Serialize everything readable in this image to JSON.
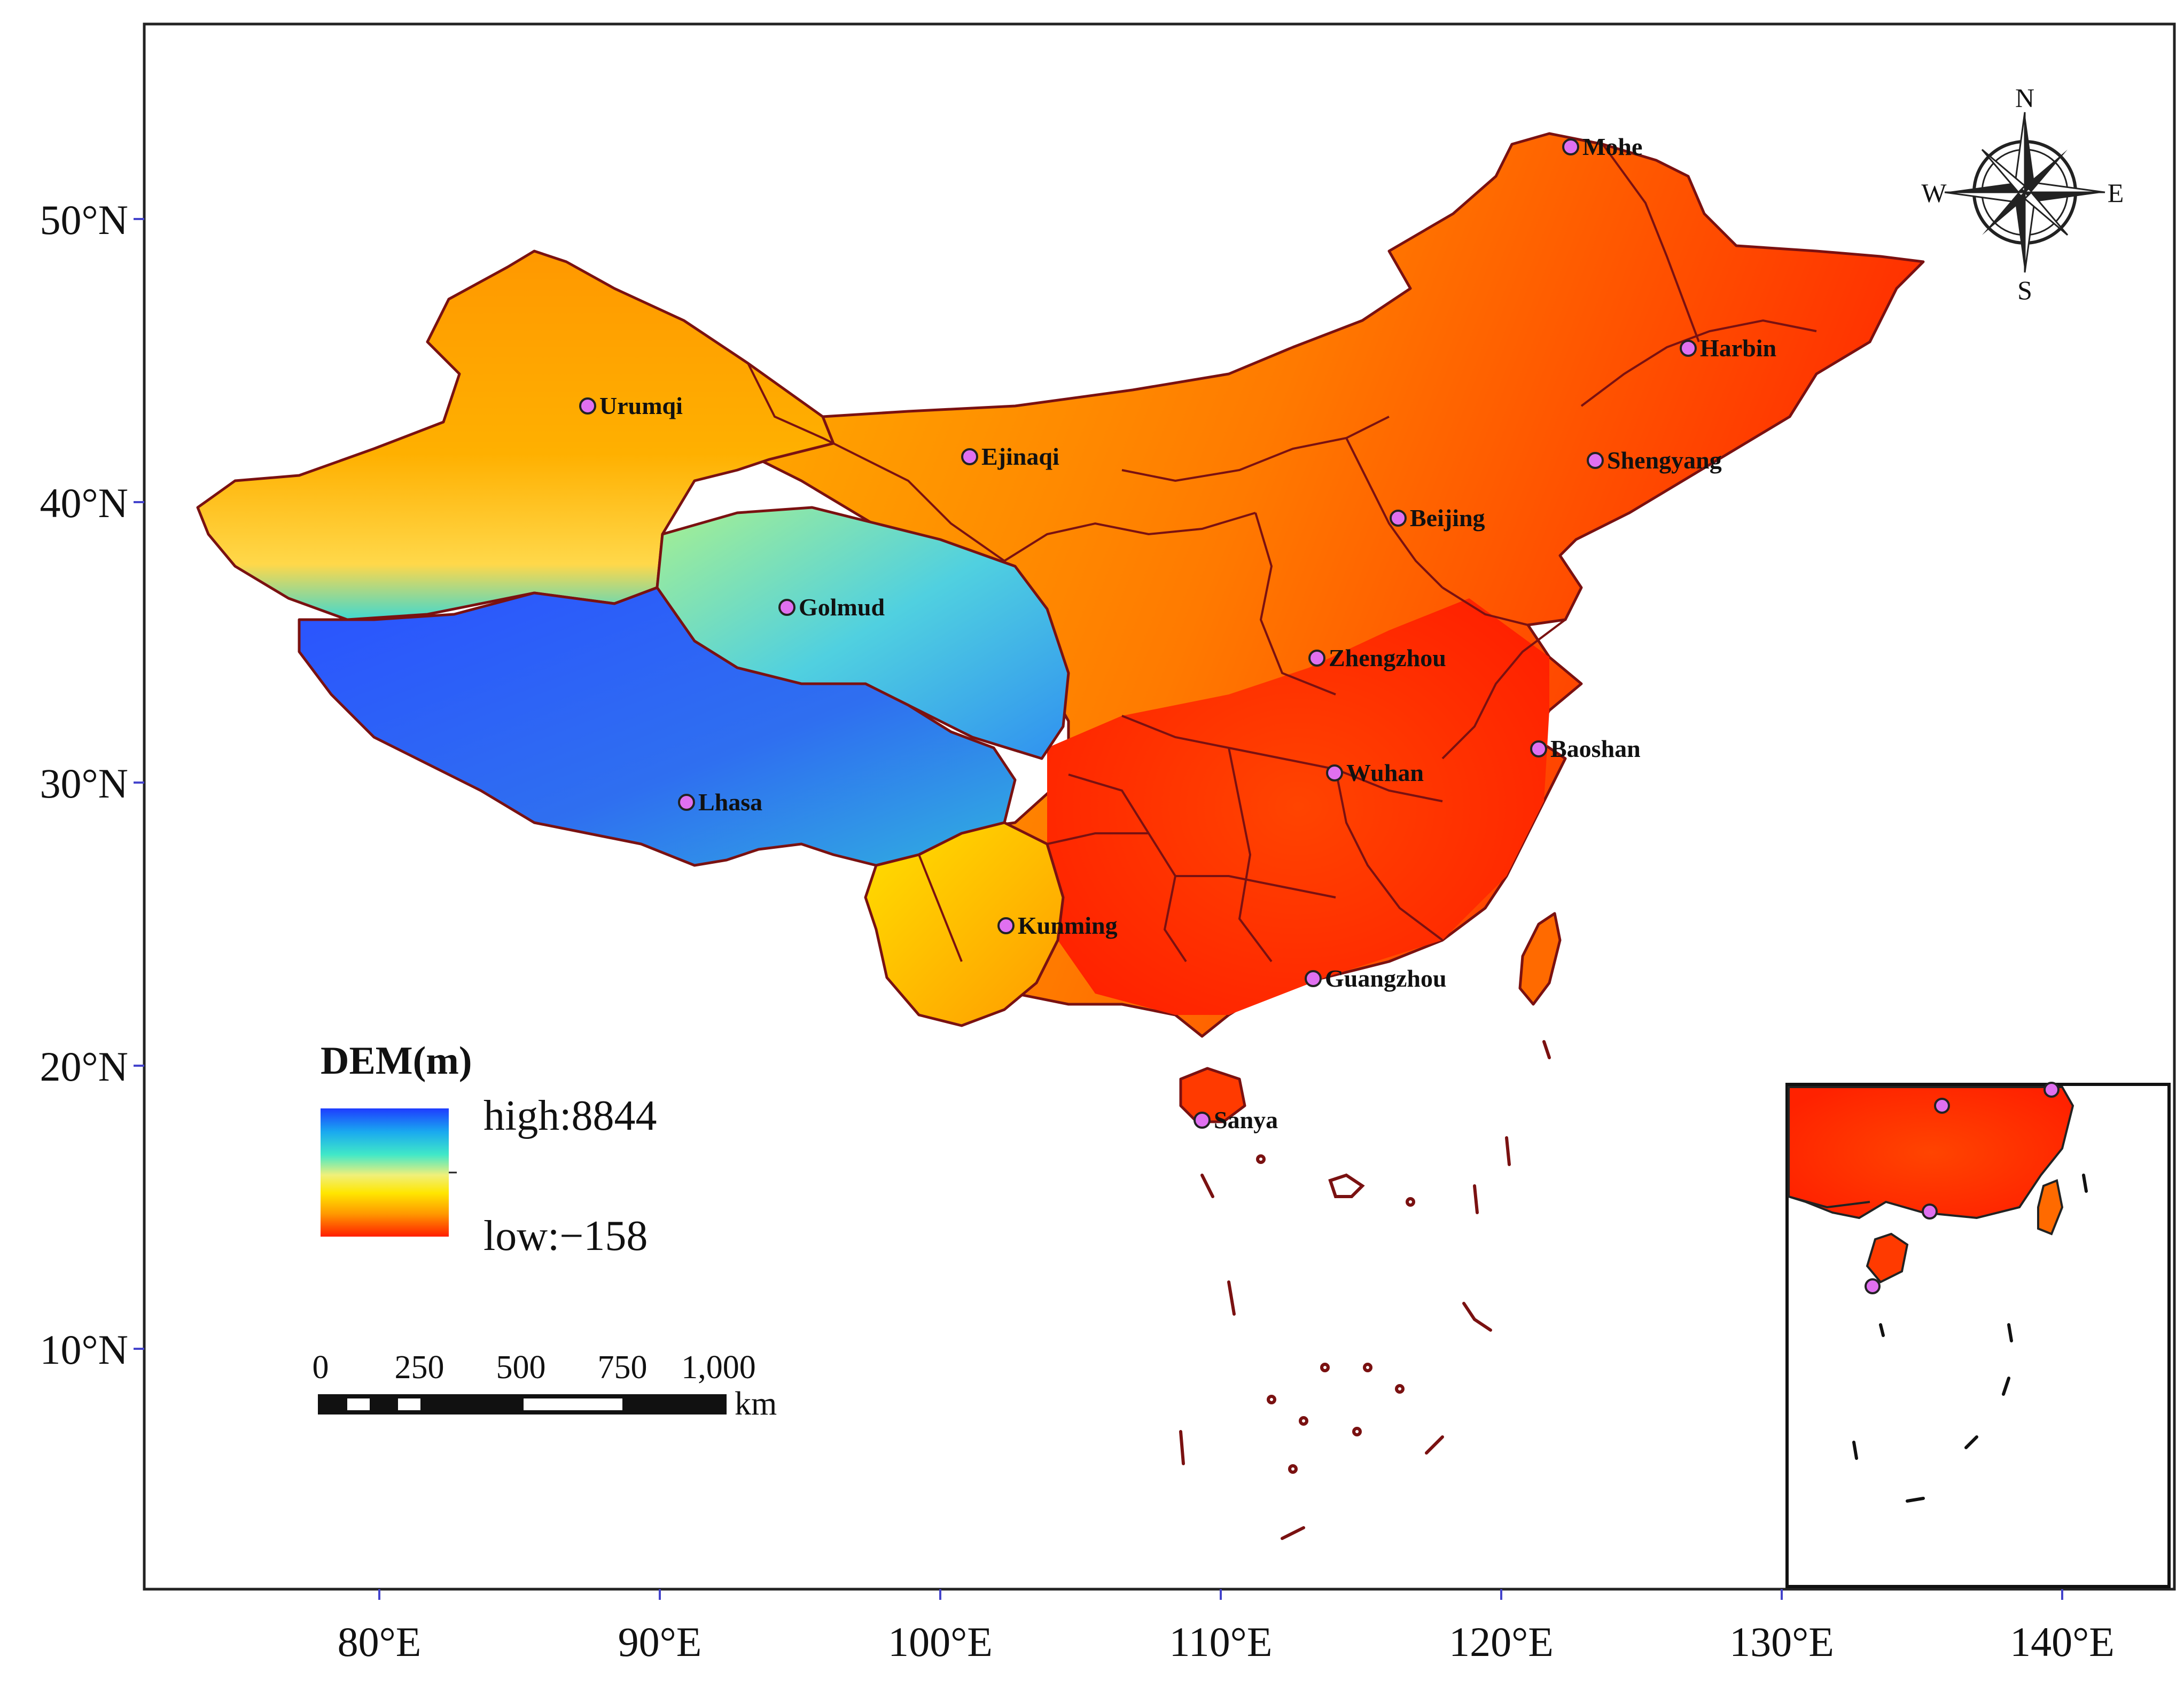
{
  "map": {
    "lon_axis": [
      "80°E",
      "90°E",
      "100°E",
      "110°E",
      "120°E",
      "130°E",
      "140°E"
    ],
    "lat_axis": [
      "50°N",
      "40°N",
      "30°N",
      "20°N",
      "10°N"
    ],
    "cities": [
      {
        "name": "Mohe"
      },
      {
        "name": "Harbin"
      },
      {
        "name": "Urumqi"
      },
      {
        "name": "Shengyang"
      },
      {
        "name": "Ejinaqi"
      },
      {
        "name": "Beijing"
      },
      {
        "name": "Golmud"
      },
      {
        "name": "Zhengzhou"
      },
      {
        "name": "Baoshan"
      },
      {
        "name": "Wuhan"
      },
      {
        "name": "Lhasa"
      },
      {
        "name": "Kunming"
      },
      {
        "name": "Guangzhou"
      },
      {
        "name": "Sanya"
      }
    ],
    "legend": {
      "title": "DEM(m)",
      "high_label": "high:8844",
      "low_label": "low:−158",
      "ramp_colors": [
        "#1e3cff",
        "#19a8f0",
        "#40e8c8",
        "#f0f07a",
        "#ffe600",
        "#ff9a00",
        "#ff1e00"
      ]
    },
    "scale_bar": {
      "ticks": [
        "0",
        "250",
        "500",
        "750",
        "1,000"
      ],
      "unit": "km"
    },
    "compass": {
      "n": "N",
      "s": "S",
      "e": "E",
      "w": "W"
    },
    "colors": {
      "border": "#7a1111",
      "city_marker": "#e070f0",
      "high_elevation": "#2a4ff0",
      "lowland": "#ff2a00"
    }
  }
}
